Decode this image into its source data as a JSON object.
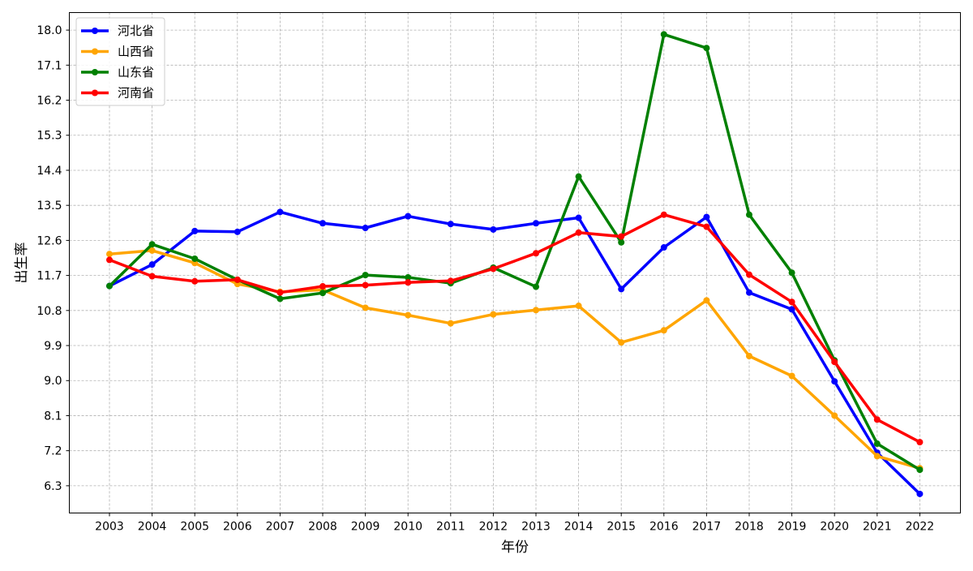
{
  "chart_data": {
    "type": "line",
    "title": "",
    "xlabel": "年份",
    "ylabel": "出生率",
    "categories": [
      "2003",
      "2004",
      "2005",
      "2006",
      "2007",
      "2008",
      "2009",
      "2010",
      "2011",
      "2012",
      "2013",
      "2014",
      "2015",
      "2016",
      "2017",
      "2018",
      "2019",
      "2020",
      "2021",
      "2022"
    ],
    "ylim": [
      5.6,
      18.45
    ],
    "yticks": [
      "6.3",
      "7.2",
      "8.1",
      "9.0",
      "9.9",
      "10.8",
      "11.7",
      "12.6",
      "13.5",
      "14.4",
      "15.3",
      "16.2",
      "17.1",
      "18.0"
    ],
    "grid": true,
    "legend_position": "top-left",
    "series": [
      {
        "name": "河北省",
        "color": "#0000ff",
        "values": [
          11.43,
          11.98,
          12.84,
          12.82,
          13.33,
          13.04,
          12.92,
          13.22,
          13.02,
          12.88,
          13.04,
          13.18,
          11.35,
          12.42,
          13.2,
          11.26,
          10.83,
          8.98,
          7.15,
          6.09
        ]
      },
      {
        "name": "山西省",
        "color": "#ffa500",
        "values": [
          12.25,
          12.34,
          12.02,
          11.48,
          11.28,
          11.33,
          10.87,
          10.68,
          10.47,
          10.7,
          10.81,
          10.92,
          9.98,
          10.29,
          11.06,
          9.63,
          9.12,
          8.1,
          7.06,
          6.75
        ]
      },
      {
        "name": "山东省",
        "color": "#008000",
        "values": [
          11.43,
          12.5,
          12.13,
          11.59,
          11.1,
          11.25,
          11.71,
          11.65,
          11.5,
          11.9,
          11.41,
          14.24,
          12.55,
          17.89,
          17.54,
          13.26,
          11.77,
          9.52,
          7.38,
          6.71
        ]
      },
      {
        "name": "河南省",
        "color": "#ff0000",
        "values": [
          12.1,
          11.68,
          11.55,
          11.59,
          11.26,
          11.42,
          11.45,
          11.52,
          11.56,
          11.87,
          12.27,
          12.8,
          12.7,
          13.26,
          12.95,
          11.72,
          11.02,
          9.48,
          8.0,
          7.42
        ]
      }
    ]
  }
}
